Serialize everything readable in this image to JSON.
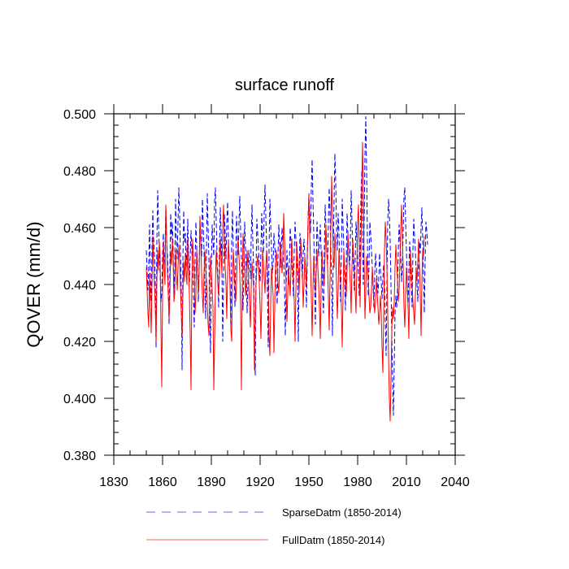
{
  "chart_data": {
    "type": "line",
    "title": "surface runoff",
    "xlabel": "",
    "ylabel": "QOVER  (mm/d)",
    "xlim": [
      1830,
      2040
    ],
    "ylim": [
      0.38,
      0.5
    ],
    "x_ticks": [
      1830,
      1860,
      1890,
      1920,
      1950,
      1980,
      2010,
      2040
    ],
    "x_tick_labels": [
      "1830",
      "1860",
      "1890",
      "1920",
      "1950",
      "1980",
      "2010",
      "2040"
    ],
    "y_ticks": [
      0.38,
      0.4,
      0.42,
      0.44,
      0.46,
      0.48,
      0.5
    ],
    "y_tick_labels": [
      "0.380",
      "0.400",
      "0.420",
      "0.440",
      "0.460",
      "0.480",
      "0.500"
    ],
    "grid": false,
    "legend_position": "bottom",
    "x_start": 1850,
    "x_end": 2014,
    "x_step": 0.5,
    "series": [
      {
        "name": "SparseDatm (1850-2014)",
        "color": "#0000ff",
        "style": "dashed",
        "values": [
          0.452,
          0.444,
          0.438,
          0.447,
          0.461,
          0.442,
          0.434,
          0.452,
          0.466,
          0.456,
          0.45,
          0.442,
          0.418,
          0.455,
          0.473,
          0.462,
          0.452,
          0.444,
          0.434,
          0.437,
          0.45,
          0.458,
          0.446,
          0.452,
          0.467,
          0.456,
          0.45,
          0.441,
          0.426,
          0.446,
          0.465,
          0.456,
          0.462,
          0.452,
          0.437,
          0.445,
          0.47,
          0.456,
          0.449,
          0.462,
          0.474,
          0.464,
          0.451,
          0.438,
          0.41,
          0.448,
          0.466,
          0.455,
          0.458,
          0.446,
          0.452,
          0.463,
          0.45,
          0.441,
          0.45,
          0.459,
          0.452,
          0.446,
          0.435,
          0.425,
          0.448,
          0.462,
          0.453,
          0.446,
          0.434,
          0.446,
          0.463,
          0.455,
          0.45,
          0.47,
          0.461,
          0.452,
          0.44,
          0.428,
          0.452,
          0.472,
          0.46,
          0.449,
          0.43,
          0.416,
          0.446,
          0.461,
          0.455,
          0.45,
          0.469,
          0.474,
          0.462,
          0.45,
          0.442,
          0.432,
          0.452,
          0.467,
          0.459,
          0.446,
          0.42,
          0.441,
          0.465,
          0.458,
          0.449,
          0.462,
          0.469,
          0.456,
          0.448,
          0.441,
          0.424,
          0.455,
          0.466,
          0.452,
          0.446,
          0.432,
          0.449,
          0.464,
          0.457,
          0.45,
          0.462,
          0.471,
          0.459,
          0.45,
          0.441,
          0.431,
          0.448,
          0.462,
          0.453,
          0.445,
          0.43,
          0.44,
          0.452,
          0.447,
          0.442,
          0.456,
          0.468,
          0.455,
          0.446,
          0.421,
          0.408,
          0.446,
          0.463,
          0.458,
          0.452,
          0.446,
          0.441,
          0.452,
          0.465,
          0.456,
          0.451,
          0.465,
          0.475,
          0.464,
          0.454,
          0.439,
          0.418,
          0.452,
          0.47,
          0.461,
          0.453,
          0.444,
          0.447,
          0.458,
          0.454,
          0.449,
          0.44,
          0.433,
          0.45,
          0.461,
          0.455,
          0.446,
          0.452,
          0.46,
          0.454,
          0.448,
          0.44,
          0.422,
          0.438,
          0.452,
          0.446,
          0.44,
          0.448,
          0.46,
          0.455,
          0.447,
          0.443,
          0.436,
          0.452,
          0.462,
          0.456,
          0.451,
          0.444,
          0.42,
          0.442,
          0.458,
          0.455,
          0.447,
          0.442,
          0.451,
          0.456,
          0.45,
          0.444,
          0.432,
          0.448,
          0.463,
          0.471,
          0.465,
          0.458,
          0.474,
          0.484,
          0.47,
          0.458,
          0.44,
          0.426,
          0.448,
          0.462,
          0.456,
          0.45,
          0.455,
          0.461,
          0.452,
          0.446,
          0.436,
          0.43,
          0.452,
          0.468,
          0.46,
          0.451,
          0.447,
          0.462,
          0.474,
          0.465,
          0.452,
          0.44,
          0.422,
          0.452,
          0.47,
          0.486,
          0.476,
          0.46,
          0.452,
          0.465,
          0.458,
          0.446,
          0.434,
          0.45,
          0.47,
          0.461,
          0.452,
          0.442,
          0.431,
          0.448,
          0.465,
          0.458,
          0.45,
          0.446,
          0.455,
          0.473,
          0.462,
          0.451,
          0.445,
          0.438,
          0.449,
          0.462,
          0.456,
          0.449,
          0.443,
          0.436,
          0.452,
          0.47,
          0.48,
          0.46,
          0.44,
          0.462,
          0.486,
          0.499,
          0.48,
          0.456,
          0.436,
          0.447,
          0.462,
          0.458,
          0.452,
          0.446,
          0.439,
          0.432,
          0.444,
          0.451,
          0.446,
          0.441,
          0.437,
          0.442,
          0.451,
          0.445,
          0.441,
          0.435,
          0.442,
          0.447,
          0.441,
          0.426,
          0.415,
          0.44,
          0.462,
          0.47,
          0.465,
          0.455,
          0.44,
          0.422,
          0.405,
          0.394,
          0.412,
          0.43,
          0.436,
          0.432,
          0.438,
          0.452,
          0.461,
          0.455,
          0.45,
          0.441,
          0.447,
          0.459,
          0.471,
          0.474,
          0.462,
          0.452,
          0.44,
          0.432,
          0.445,
          0.455,
          0.448,
          0.44,
          0.432,
          0.452,
          0.463,
          0.457,
          0.452,
          0.444,
          0.44,
          0.434,
          0.446,
          0.455,
          0.451,
          0.46,
          0.467,
          0.456,
          0.444,
          0.43,
          0.448,
          0.462,
          0.459,
          0.454
        ]
      },
      {
        "name": "FullDatm (1850-2014)",
        "color": "#ff0000",
        "style": "solid",
        "values": [
          0.446,
          0.438,
          0.43,
          0.425,
          0.444,
          0.433,
          0.423,
          0.44,
          0.457,
          0.446,
          0.44,
          0.432,
          0.42,
          0.441,
          0.452,
          0.445,
          0.455,
          0.45,
          0.425,
          0.404,
          0.438,
          0.455,
          0.446,
          0.44,
          0.468,
          0.456,
          0.444,
          0.436,
          0.428,
          0.437,
          0.452,
          0.447,
          0.456,
          0.449,
          0.434,
          0.437,
          0.452,
          0.444,
          0.438,
          0.446,
          0.454,
          0.448,
          0.439,
          0.43,
          0.422,
          0.436,
          0.448,
          0.441,
          0.451,
          0.444,
          0.44,
          0.456,
          0.446,
          0.436,
          0.422,
          0.403,
          0.44,
          0.456,
          0.45,
          0.444,
          0.43,
          0.436,
          0.452,
          0.444,
          0.437,
          0.444,
          0.464,
          0.454,
          0.444,
          0.436,
          0.43,
          0.444,
          0.452,
          0.446,
          0.441,
          0.433,
          0.426,
          0.422,
          0.44,
          0.45,
          0.445,
          0.438,
          0.432,
          0.403,
          0.42,
          0.44,
          0.452,
          0.446,
          0.44,
          0.436,
          0.444,
          0.456,
          0.45,
          0.444,
          0.46,
          0.468,
          0.456,
          0.446,
          0.44,
          0.428,
          0.444,
          0.455,
          0.449,
          0.44,
          0.424,
          0.42,
          0.44,
          0.452,
          0.446,
          0.44,
          0.434,
          0.44,
          0.452,
          0.456,
          0.45,
          0.444,
          0.432,
          0.403,
          0.438,
          0.458,
          0.452,
          0.446,
          0.436,
          0.441,
          0.452,
          0.446,
          0.44,
          0.433,
          0.425,
          0.438,
          0.448,
          0.443,
          0.439,
          0.41,
          0.425,
          0.44,
          0.446,
          0.45,
          0.448,
          0.44,
          0.432,
          0.421,
          0.435,
          0.452,
          0.448,
          0.442,
          0.437,
          0.446,
          0.452,
          0.446,
          0.44,
          0.422,
          0.415,
          0.432,
          0.446,
          0.441,
          0.436,
          0.416,
          0.432,
          0.448,
          0.452,
          0.446,
          0.44,
          0.437,
          0.446,
          0.455,
          0.449,
          0.444,
          0.45,
          0.465,
          0.456,
          0.448,
          0.44,
          0.427,
          0.436,
          0.446,
          0.441,
          0.436,
          0.446,
          0.456,
          0.448,
          0.441,
          0.434,
          0.42,
          0.438,
          0.455,
          0.45,
          0.444,
          0.437,
          0.448,
          0.456,
          0.45,
          0.444,
          0.432,
          0.44,
          0.45,
          0.446,
          0.439,
          0.451,
          0.462,
          0.472,
          0.458,
          0.448,
          0.436,
          0.422,
          0.438,
          0.45,
          0.444,
          0.437,
          0.444,
          0.452,
          0.446,
          0.44,
          0.432,
          0.421,
          0.438,
          0.452,
          0.446,
          0.44,
          0.44,
          0.452,
          0.461,
          0.452,
          0.446,
          0.436,
          0.424,
          0.442,
          0.46,
          0.478,
          0.464,
          0.45,
          0.446,
          0.458,
          0.452,
          0.44,
          0.428,
          0.438,
          0.452,
          0.446,
          0.441,
          0.432,
          0.418,
          0.436,
          0.452,
          0.446,
          0.44,
          0.436,
          0.446,
          0.458,
          0.452,
          0.446,
          0.44,
          0.43,
          0.446,
          0.456,
          0.45,
          0.444,
          0.437,
          0.43,
          0.446,
          0.462,
          0.468,
          0.452,
          0.432,
          0.452,
          0.474,
          0.49,
          0.47,
          0.448,
          0.428,
          0.437,
          0.45,
          0.446,
          0.442,
          0.436,
          0.43,
          0.432,
          0.438,
          0.446,
          0.44,
          0.435,
          0.43,
          0.434,
          0.442,
          0.437,
          0.432,
          0.426,
          0.43,
          0.436,
          0.43,
          0.418,
          0.409,
          0.43,
          0.452,
          0.462,
          0.456,
          0.446,
          0.43,
          0.415,
          0.4,
          0.392,
          0.406,
          0.424,
          0.432,
          0.428,
          0.434,
          0.446,
          0.454,
          0.448,
          0.442,
          0.434,
          0.438,
          0.448,
          0.46,
          0.468,
          0.456,
          0.446,
          0.432,
          0.425,
          0.436,
          0.446,
          0.44,
          0.432,
          0.421,
          0.44,
          0.452,
          0.446,
          0.44,
          0.434,
          0.43,
          0.426,
          0.436,
          0.446,
          0.441,
          0.448,
          0.456,
          0.446,
          0.437,
          0.422,
          0.44,
          0.452,
          0.45,
          0.457
        ]
      }
    ]
  }
}
